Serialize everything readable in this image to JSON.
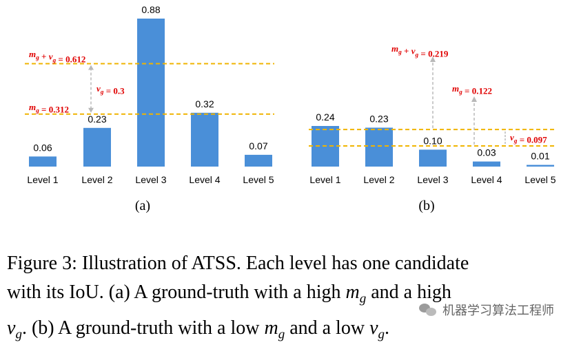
{
  "chart_data": [
    {
      "type": "bar",
      "panel_label": "(a)",
      "categories": [
        "Level 1",
        "Level 2",
        "Level 3",
        "Level 4",
        "Level 5"
      ],
      "values": [
        0.06,
        0.23,
        0.88,
        0.32,
        0.07
      ],
      "value_labels": [
        "0.06",
        "0.23",
        "0.88",
        "0.32",
        "0.07"
      ],
      "ylim": [
        0,
        0.88
      ],
      "bar_color": "#4a8fd8",
      "reference_lines": [
        {
          "value": 0.612,
          "color": "#f0b400",
          "label_math": "m_g + v_g = 0.612"
        },
        {
          "value": 0.312,
          "color": "#f0b400",
          "label_math": "m_g = 0.312"
        }
      ],
      "annotation": {
        "label_math": "v_g = 0.3",
        "color": "#e00000"
      }
    },
    {
      "type": "bar",
      "panel_label": "(b)",
      "categories": [
        "Level 1",
        "Level 2",
        "Level 3",
        "Level 4",
        "Level 5"
      ],
      "values": [
        0.24,
        0.23,
        0.1,
        0.03,
        0.01
      ],
      "value_labels": [
        "0.24",
        "0.23",
        "0.10",
        "0.03",
        "0.01"
      ],
      "ylim": [
        0,
        0.24
      ],
      "bar_color": "#4a8fd8",
      "reference_lines": [
        {
          "value": 0.219,
          "color": "#f0b400",
          "label_math": "m_g + v_g = 0.219"
        },
        {
          "value": 0.122,
          "color": "#f0b400",
          "label_math": "m_g = 0.122"
        }
      ],
      "annotation": {
        "label_math": "v_g = 0.097",
        "color": "#e00000"
      }
    }
  ],
  "caption": {
    "line1": "Figure 3: Illustration of ATSS. Each level has one candidate",
    "line2_a": "with its IoU. (a) A ground-truth with a high ",
    "line2_b": " and a high",
    "line3_a": ". (b) A ground-truth with a low ",
    "line3_b": " and a low ",
    "line3_c": ".",
    "math_m": "m",
    "math_v": "v",
    "math_sub": "g"
  },
  "watermark": {
    "text": "机器学习算法工程师"
  }
}
